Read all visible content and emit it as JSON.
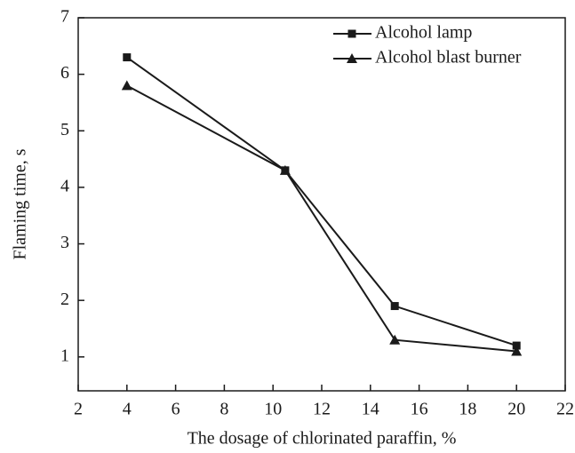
{
  "chart_data": {
    "type": "line",
    "x_label": "The dosage of chlorinated paraffin, %",
    "y_label": "Flaming time, s",
    "xlim": [
      2,
      22
    ],
    "xticks": [
      2,
      4,
      6,
      8,
      10,
      12,
      14,
      16,
      18,
      20,
      22
    ],
    "ylim": [
      0.4,
      7
    ],
    "yticks": [
      1,
      2,
      3,
      4,
      5,
      6,
      7
    ],
    "legend": "upper right",
    "series": [
      {
        "name": "Alcohol lamp",
        "color": "#1a1a1a",
        "marker": "square",
        "x": [
          4,
          10.5,
          15,
          20
        ],
        "values": [
          6.3,
          4.3,
          1.9,
          1.2
        ]
      },
      {
        "name": "Alcohol blast burner",
        "color": "#1a1a1a",
        "marker": "triangle",
        "x": [
          4,
          10.5,
          15,
          20
        ],
        "values": [
          5.8,
          4.3,
          1.3,
          1.1
        ]
      }
    ]
  }
}
